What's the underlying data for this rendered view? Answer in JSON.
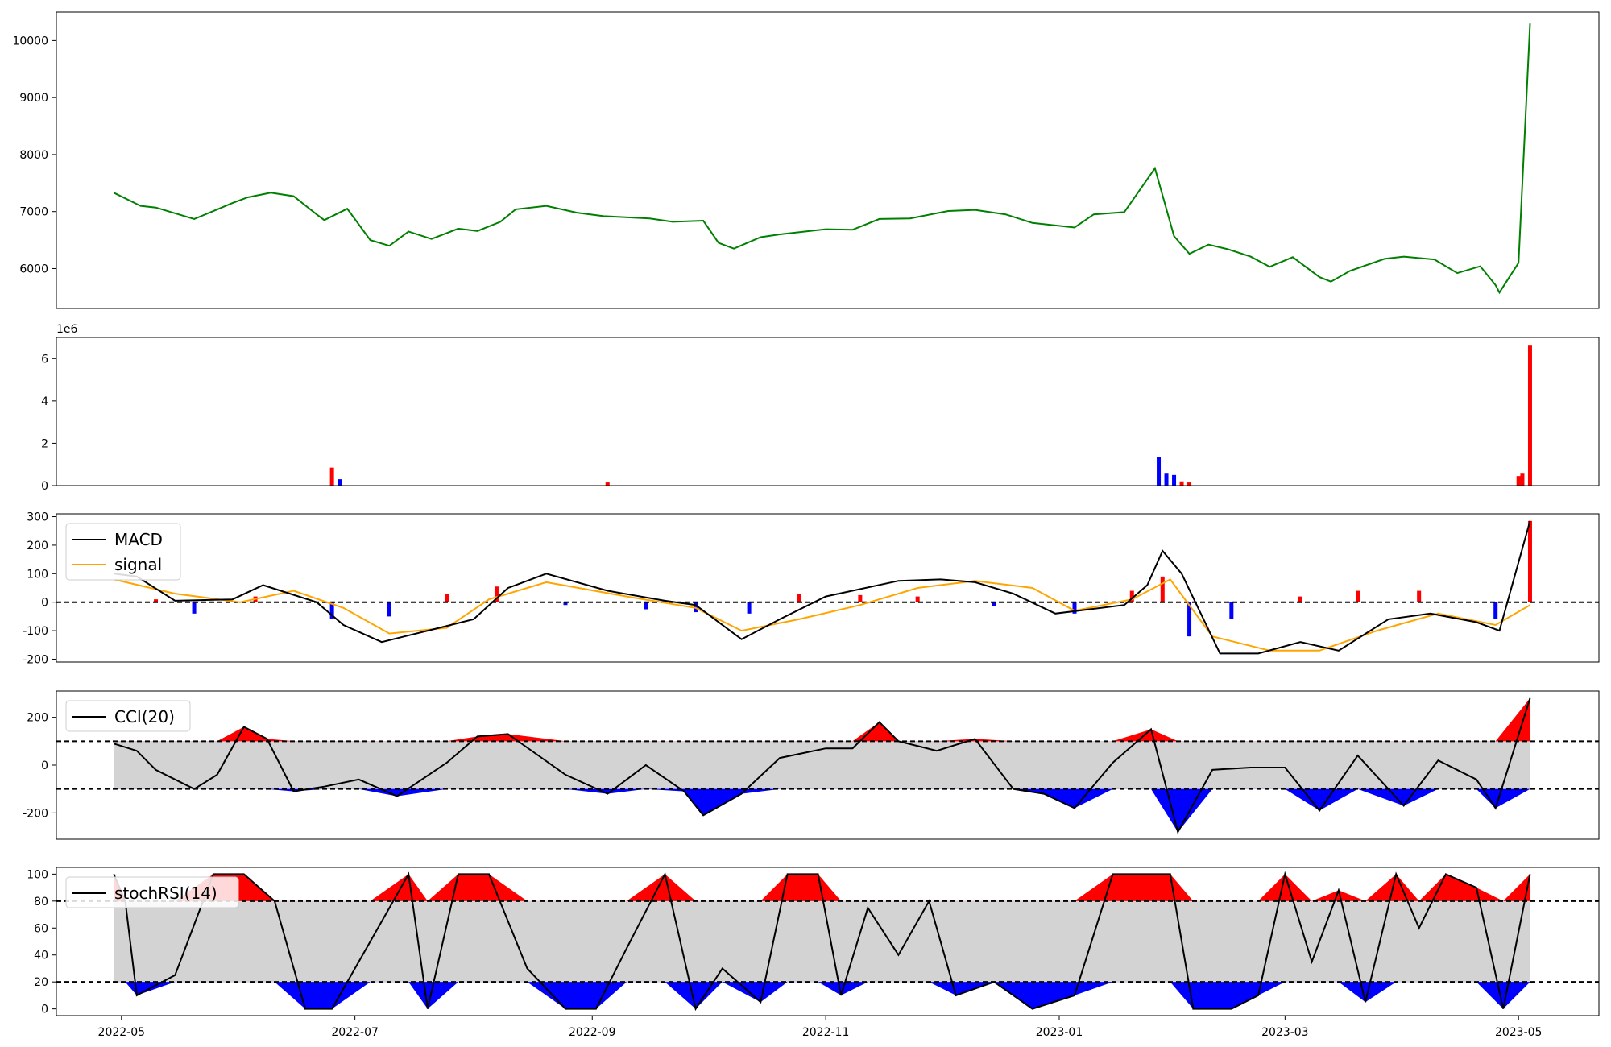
{
  "chart_data": [
    {
      "type": "line",
      "title": "",
      "x_ticks": [
        "2022-05",
        "2022-07",
        "2022-09",
        "2022-11",
        "2023-01",
        "2023-03",
        "2023-05"
      ],
      "ylim": [
        5300,
        10500
      ],
      "y_ticks": [
        "6000",
        "7000",
        "8000",
        "9000",
        "10000"
      ],
      "grid": false,
      "color": "#008000",
      "series": [
        {
          "x": [
            "2022-04-29",
            "2022-05-06",
            "2022-05-10",
            "2022-05-20",
            "2022-05-24",
            "2022-05-30",
            "2022-06-03",
            "2022-06-09",
            "2022-06-15",
            "2022-06-21",
            "2022-06-23",
            "2022-06-29",
            "2022-07-05",
            "2022-07-10",
            "2022-07-15",
            "2022-07-21",
            "2022-07-28",
            "2022-08-02",
            "2022-08-08",
            "2022-08-12",
            "2022-08-20",
            "2022-08-28",
            "2022-09-04",
            "2022-09-16",
            "2022-09-22",
            "2022-09-30",
            "2022-10-04",
            "2022-10-08",
            "2022-10-15",
            "2022-10-20",
            "2022-11-01",
            "2022-11-08",
            "2022-11-15",
            "2022-11-23",
            "2022-12-03",
            "2022-12-10",
            "2022-12-18",
            "2022-12-25",
            "2023-01-05",
            "2023-01-10",
            "2023-01-18",
            "2023-01-26",
            "2023-01-31",
            "2023-02-04",
            "2023-02-09",
            "2023-02-14",
            "2023-02-20",
            "2023-02-25",
            "2023-03-03",
            "2023-03-10",
            "2023-03-13",
            "2023-03-18",
            "2023-03-27",
            "2023-04-01",
            "2023-04-09",
            "2023-04-15",
            "2023-04-21",
            "2023-04-25",
            "2023-04-26",
            "2023-05-01",
            "2023-05-04"
          ],
          "values": [
            7330,
            7100,
            7070,
            6870,
            6980,
            7150,
            7250,
            7330,
            7270,
            6950,
            6850,
            7050,
            6500,
            6400,
            6650,
            6520,
            6700,
            6660,
            6820,
            7040,
            7100,
            6980,
            6920,
            6880,
            6820,
            6840,
            6450,
            6350,
            6550,
            6600,
            6690,
            6680,
            6870,
            6880,
            7010,
            7030,
            6950,
            6800,
            6720,
            6950,
            6990,
            7760,
            6570,
            6260,
            6420,
            6340,
            6210,
            6030,
            6200,
            5850,
            5770,
            5960,
            6170,
            6210,
            6160,
            5920,
            6040,
            5710,
            5580,
            6100,
            10300
          ]
        }
      ]
    },
    {
      "type": "bar",
      "title": "",
      "y_offset_label": "1e6",
      "ylim": [
        0,
        7
      ],
      "y_ticks": [
        "0",
        "2",
        "4",
        "6"
      ],
      "colors": {
        "up": "#ff0000",
        "down": "#0000ff"
      },
      "grid": false,
      "series": [
        {
          "name": "",
          "x": [
            "2022-06-25",
            "2022-06-27",
            "2022-09-05",
            "2023-01-27",
            "2023-01-29",
            "2023-01-31",
            "2023-02-02",
            "2023-02-04",
            "2023-05-01",
            "2023-05-02",
            "2023-05-04"
          ],
          "values": [
            0.85,
            0.3,
            0.15,
            1.35,
            0.6,
            0.5,
            0.2,
            0.15,
            0.45,
            0.6,
            6.65
          ],
          "direction": [
            "up",
            "down",
            "up",
            "down",
            "down",
            "down",
            "up",
            "up",
            "up",
            "up",
            "up"
          ]
        }
      ]
    },
    {
      "type": "line",
      "title": "",
      "ylim": [
        -210,
        310
      ],
      "y_ticks": [
        "-200",
        "-100",
        "0",
        "100",
        "200",
        "300"
      ],
      "legend": {
        "placement": "top-left",
        "entries": [
          "MACD",
          "signal"
        ]
      },
      "reference_lines": [
        0
      ],
      "grid": false,
      "series": [
        {
          "name": "MACD",
          "color": "#000000",
          "x": [
            "2022-04-29",
            "2022-05-05",
            "2022-05-15",
            "2022-05-30",
            "2022-06-07",
            "2022-06-21",
            "2022-06-28",
            "2022-07-08",
            "2022-07-20",
            "2022-08-01",
            "2022-08-10",
            "2022-08-20",
            "2022-09-05",
            "2022-09-20",
            "2022-09-28",
            "2022-10-10",
            "2022-10-20",
            "2022-11-01",
            "2022-11-20",
            "2022-12-01",
            "2022-12-10",
            "2022-12-20",
            "2022-12-31",
            "2023-01-18",
            "2023-01-24",
            "2023-01-28",
            "2023-02-02",
            "2023-02-12",
            "2023-02-22",
            "2023-03-05",
            "2023-03-15",
            "2023-03-28",
            "2023-04-08",
            "2023-04-20",
            "2023-04-26",
            "2023-05-04"
          ],
          "values": [
            100,
            90,
            5,
            10,
            60,
            0,
            -80,
            -140,
            -100,
            -60,
            50,
            100,
            40,
            5,
            -10,
            -130,
            -60,
            20,
            75,
            80,
            70,
            30,
            -40,
            -10,
            60,
            180,
            100,
            -180,
            -180,
            -140,
            -170,
            -60,
            -40,
            -70,
            -100,
            285
          ]
        },
        {
          "name": "signal",
          "color": "#ffa500",
          "x": [
            "2022-04-29",
            "2022-05-15",
            "2022-06-01",
            "2022-06-15",
            "2022-06-28",
            "2022-07-10",
            "2022-07-25",
            "2022-08-05",
            "2022-08-20",
            "2022-09-10",
            "2022-09-28",
            "2022-10-10",
            "2022-10-25",
            "2022-11-10",
            "2022-11-25",
            "2022-12-10",
            "2022-12-25",
            "2023-01-05",
            "2023-01-20",
            "2023-01-30",
            "2023-02-10",
            "2023-02-25",
            "2023-03-10",
            "2023-03-25",
            "2023-04-10",
            "2023-04-25",
            "2023-05-04"
          ],
          "values": [
            80,
            30,
            0,
            40,
            -20,
            -110,
            -90,
            10,
            70,
            20,
            -20,
            -100,
            -60,
            -10,
            50,
            75,
            50,
            -30,
            10,
            80,
            -120,
            -170,
            -170,
            -100,
            -40,
            -80,
            -10
          ]
        },
        {
          "name": "histogram",
          "colors": {
            "positive": "#ff0000",
            "negative": "#0000ff"
          },
          "x": [
            "2022-05-10",
            "2022-05-20",
            "2022-06-05",
            "2022-06-25",
            "2022-07-10",
            "2022-07-25",
            "2022-08-07",
            "2022-08-25",
            "2022-09-15",
            "2022-09-28",
            "2022-10-12",
            "2022-10-25",
            "2022-11-10",
            "2022-11-25",
            "2022-12-15",
            "2023-01-05",
            "2023-01-20",
            "2023-01-28",
            "2023-02-04",
            "2023-02-15",
            "2023-03-05",
            "2023-03-20",
            "2023-04-05",
            "2023-04-25",
            "2023-05-04"
          ],
          "values": [
            10,
            -40,
            20,
            -60,
            -50,
            30,
            55,
            -10,
            -25,
            -35,
            -40,
            30,
            25,
            20,
            -15,
            -40,
            40,
            90,
            -120,
            -60,
            20,
            40,
            40,
            -60,
            285
          ]
        }
      ]
    },
    {
      "type": "line",
      "title": "",
      "ylim": [
        -310,
        310
      ],
      "y_ticks": [
        "-200",
        "0",
        "200"
      ],
      "legend": {
        "placement": "top-left",
        "entries": [
          "CCI(20)"
        ]
      },
      "thresholds": [
        100,
        -100
      ],
      "fill_colors": {
        "above": "#ff0000",
        "below": "#0000ff",
        "band": "#d3d3d3"
      },
      "grid": false,
      "series": [
        {
          "name": "CCI(20)",
          "color": "#000000",
          "x": [
            "2022-04-29",
            "2022-05-05",
            "2022-05-10",
            "2022-05-20",
            "2022-05-26",
            "2022-06-02",
            "2022-06-08",
            "2022-06-15",
            "2022-06-23",
            "2022-07-02",
            "2022-07-12",
            "2022-07-25",
            "2022-08-02",
            "2022-08-10",
            "2022-08-25",
            "2022-09-05",
            "2022-09-15",
            "2022-09-25",
            "2022-09-30",
            "2022-10-10",
            "2022-10-20",
            "2022-11-01",
            "2022-11-08",
            "2022-11-15",
            "2022-11-20",
            "2022-11-30",
            "2022-12-10",
            "2022-12-20",
            "2022-12-28",
            "2023-01-05",
            "2023-01-15",
            "2023-01-25",
            "2023-02-01",
            "2023-02-10",
            "2023-02-20",
            "2023-03-01",
            "2023-03-10",
            "2023-03-20",
            "2023-04-01",
            "2023-04-10",
            "2023-04-20",
            "2023-04-25",
            "2023-05-04"
          ],
          "values": [
            90,
            60,
            -20,
            -100,
            -40,
            160,
            110,
            -110,
            -90,
            -60,
            -130,
            10,
            120,
            130,
            -40,
            -120,
            0,
            -110,
            -210,
            -120,
            30,
            70,
            70,
            180,
            100,
            60,
            110,
            -100,
            -120,
            -180,
            10,
            150,
            -280,
            -20,
            -10,
            -10,
            -190,
            40,
            -170,
            20,
            -60,
            -180,
            280
          ]
        }
      ]
    },
    {
      "type": "line",
      "title": "",
      "ylim": [
        -5,
        105
      ],
      "y_ticks": [
        "0",
        "20",
        "40",
        "60",
        "80",
        "100"
      ],
      "legend": {
        "placement": "top-left",
        "entries": [
          "stochRSI(14)"
        ]
      },
      "thresholds": [
        80,
        20
      ],
      "fill_colors": {
        "above": "#ff0000",
        "below": "#0000ff",
        "band": "#d3d3d3"
      },
      "grid": false,
      "series": [
        {
          "name": "stochRSI(14)",
          "color": "#000000",
          "x": [
            "2022-04-29",
            "2022-05-02",
            "2022-05-05",
            "2022-05-15",
            "2022-05-25",
            "2022-06-02",
            "2022-06-10",
            "2022-06-18",
            "2022-06-25",
            "2022-07-05",
            "2022-07-15",
            "2022-07-20",
            "2022-07-28",
            "2022-08-05",
            "2022-08-15",
            "2022-08-25",
            "2022-09-02",
            "2022-09-10",
            "2022-09-20",
            "2022-09-28",
            "2022-10-05",
            "2022-10-15",
            "2022-10-22",
            "2022-10-30",
            "2022-11-05",
            "2022-11-12",
            "2022-11-20",
            "2022-11-28",
            "2022-12-05",
            "2022-12-15",
            "2022-12-25",
            "2023-01-05",
            "2023-01-15",
            "2023-01-20",
            "2023-01-30",
            "2023-02-05",
            "2023-02-15",
            "2023-02-22",
            "2023-03-01",
            "2023-03-08",
            "2023-03-15",
            "2023-03-22",
            "2023-03-30",
            "2023-04-05",
            "2023-04-12",
            "2023-04-20",
            "2023-04-27",
            "2023-05-04"
          ],
          "values": [
            100,
            80,
            10,
            25,
            100,
            100,
            80,
            0,
            0,
            50,
            100,
            0,
            100,
            100,
            30,
            0,
            0,
            45,
            100,
            0,
            30,
            5,
            100,
            100,
            10,
            75,
            40,
            80,
            10,
            20,
            0,
            10,
            100,
            100,
            100,
            0,
            0,
            10,
            100,
            35,
            88,
            5,
            100,
            60,
            100,
            90,
            0,
            100
          ]
        }
      ]
    }
  ]
}
